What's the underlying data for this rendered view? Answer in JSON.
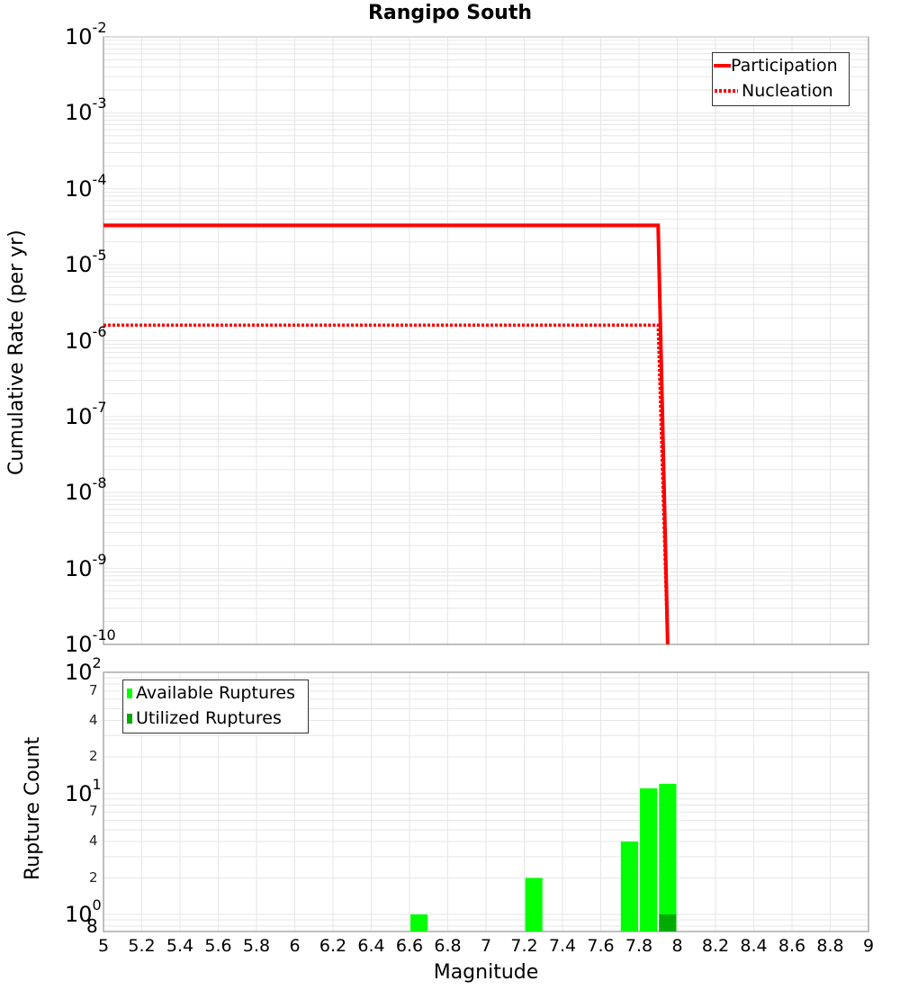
{
  "title": "Rangipo South",
  "colors": {
    "participation": "#ff0000",
    "nucleation": "#ff0000",
    "available": "#00ff00",
    "utilized": "#00aa00",
    "grid": "#e6e6e6",
    "axis": "#aaaaaa"
  },
  "top_plot": {
    "ylabel": "Cumulative Rate (per yr)",
    "y_ticks": [
      {
        "base": "10",
        "exp": "-2"
      },
      {
        "base": "10",
        "exp": "-3"
      },
      {
        "base": "10",
        "exp": "-4"
      },
      {
        "base": "10",
        "exp": "-5"
      },
      {
        "base": "10",
        "exp": "-6"
      },
      {
        "base": "10",
        "exp": "-7"
      },
      {
        "base": "10",
        "exp": "-8"
      },
      {
        "base": "10",
        "exp": "-9"
      },
      {
        "base": "10",
        "exp": "-10"
      }
    ],
    "legend": [
      {
        "label": "Participation",
        "style": "solid"
      },
      {
        "label": "Nucleation",
        "style": "dotted"
      }
    ]
  },
  "bottom_plot": {
    "ylabel": "Rupture Count",
    "y_major": [
      {
        "base": "10",
        "exp": "2"
      },
      {
        "base": "10",
        "exp": "1"
      },
      {
        "base": "10",
        "exp": "0"
      }
    ],
    "y_minor": [
      "7",
      "4",
      "2",
      "7",
      "4",
      "2",
      "8"
    ],
    "legend": [
      {
        "label": "Available Ruptures"
      },
      {
        "label": "Utilized Ruptures"
      }
    ]
  },
  "xlabel": "Magnitude",
  "x_ticks": [
    "5",
    "5.2",
    "5.4",
    "5.6",
    "5.8",
    "6",
    "6.2",
    "6.4",
    "6.6",
    "6.8",
    "7",
    "7.2",
    "7.4",
    "7.6",
    "7.8",
    "8",
    "8.2",
    "8.4",
    "8.6",
    "8.8",
    "9"
  ],
  "chart_data": [
    {
      "type": "line",
      "title": "Rangipo South",
      "xlabel": "Magnitude",
      "ylabel": "Cumulative Rate (per yr)",
      "xlim": [
        5,
        9
      ],
      "ylim": [
        1e-10,
        0.01
      ],
      "yscale": "log",
      "grid": true,
      "legend_position": "top-right",
      "series": [
        {
          "name": "Participation",
          "style": "solid",
          "x": [
            5.0,
            7.9,
            7.95
          ],
          "y": [
            3.3e-05,
            3.3e-05,
            1e-10
          ]
        },
        {
          "name": "Nucleation",
          "style": "dotted",
          "x": [
            5.0,
            7.9,
            7.95
          ],
          "y": [
            1.6e-06,
            1.6e-06,
            1e-10
          ]
        }
      ]
    },
    {
      "type": "bar",
      "xlabel": "Magnitude",
      "ylabel": "Rupture Count",
      "xlim": [
        5,
        9
      ],
      "ylim": [
        0.8,
        100
      ],
      "yscale": "log",
      "grid": true,
      "legend_position": "top-left",
      "categories": [
        6.65,
        7.25,
        7.75,
        7.85,
        7.95
      ],
      "series": [
        {
          "name": "Available Ruptures",
          "values": [
            1,
            2,
            4,
            11,
            12
          ]
        },
        {
          "name": "Utilized Ruptures",
          "values": [
            0,
            0,
            0,
            0,
            1
          ]
        }
      ]
    }
  ]
}
